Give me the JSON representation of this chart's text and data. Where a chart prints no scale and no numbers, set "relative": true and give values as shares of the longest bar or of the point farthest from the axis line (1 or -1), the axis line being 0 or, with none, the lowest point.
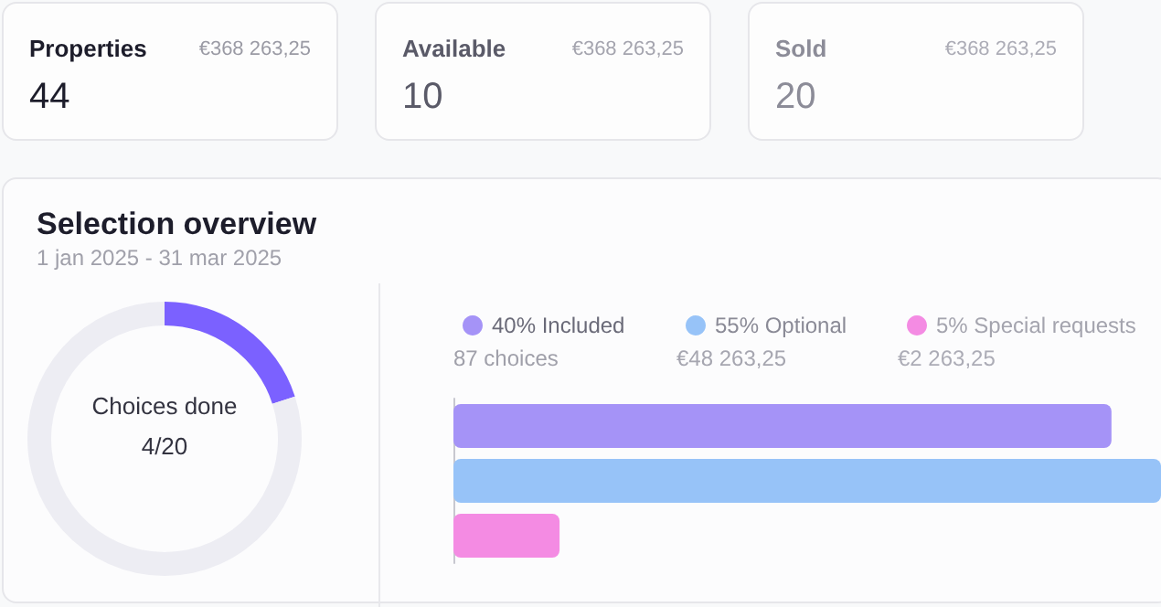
{
  "chart_data": [
    {
      "type": "other",
      "annotations": [
        "Properties",
        "€368 263,25",
        "44",
        "Available",
        "€368 263,25",
        "10",
        "Sold",
        "€368 263,25",
        "20"
      ]
    },
    {
      "type": "donut",
      "title": "Selection overview",
      "subtitle": "1 jan 2025 - 31 mar 2025",
      "categories": [
        null,
        null
      ],
      "values": [
        20,
        80
      ],
      "colors": [
        "#7b61ff",
        "#ededf3"
      ],
      "annotations": [
        "Choices done",
        "4/20"
      ]
    },
    {
      "type": "bar",
      "orientation": "horizontal",
      "stacked": true,
      "relative": true,
      "legend": "top left",
      "categories": [
        null,
        null,
        null
      ],
      "series": [
        {
          "name": "40% Included",
          "color": "#a593f7",
          "values": [
            0.93,
            null,
            null
          ]
        },
        {
          "name": "55% Optional",
          "color": "#97c3f8",
          "values": [
            null,
            1,
            null
          ]
        },
        {
          "name": "5% Special requests",
          "color": "#f48be3",
          "values": [
            null,
            null,
            0.15
          ]
        }
      ],
      "annotations": [
        "87 choices",
        "€48 263,25",
        "€2 263,25"
      ]
    }
  ]
}
